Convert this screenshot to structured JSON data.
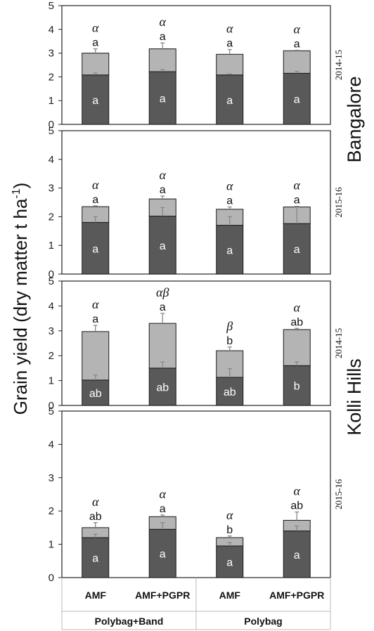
{
  "chart_data": {
    "type": "bar",
    "stacked": true,
    "ylabel_text": "Grain yield (dry matter t ha",
    "ylabel_sup": "-1",
    "ylabel_close": ")",
    "ylim": [
      0,
      5
    ],
    "yticks": [
      "0",
      "1",
      "2",
      "3",
      "4",
      "5"
    ],
    "categories": [
      "AMF",
      "AMF+PGPR",
      "AMF",
      "AMF+PGPR"
    ],
    "groups": [
      "Polybag+Band",
      "Polybag"
    ],
    "colors": {
      "lower": "#595959",
      "upper": "#b4b4b4",
      "edge": "#1a1a1a",
      "error": "#888888"
    },
    "panels": [
      {
        "site": "Bangalore",
        "year": "2014-15",
        "lower": [
          2.08,
          2.22,
          2.08,
          2.15
        ],
        "total": [
          3.0,
          3.18,
          2.95,
          3.1
        ],
        "lower_err": [
          0.08,
          0.08,
          0.04,
          0.08
        ],
        "total_err": [
          0.18,
          0.25,
          0.2,
          0.02
        ],
        "lower_letters": [
          "a",
          "a",
          "a",
          "a"
        ],
        "upper_letters": [
          "a",
          "a",
          "a",
          "a"
        ],
        "greek": [
          "α",
          "α",
          "α",
          "α"
        ]
      },
      {
        "site": "",
        "year": "2015-16",
        "lower": [
          1.8,
          2.02,
          1.7,
          1.76
        ],
        "total": [
          2.35,
          2.62,
          2.26,
          2.34
        ],
        "lower_err": [
          0.2,
          0.3,
          0.3,
          0.6
        ],
        "total_err": [
          0.03,
          0.1,
          0.08,
          0.02
        ],
        "lower_letters": [
          "a",
          "a",
          "a",
          "a"
        ],
        "upper_letters": [
          "a",
          "a",
          "a",
          "a"
        ],
        "greek": [
          "α",
          "α",
          "α",
          "α"
        ]
      },
      {
        "site": "Kolli Hills",
        "year": "2014-15",
        "lower": [
          1.02,
          1.5,
          1.13,
          1.6
        ],
        "total": [
          2.97,
          3.3,
          2.2,
          3.05
        ],
        "lower_err": [
          0.2,
          0.25,
          0.35,
          0.15
        ],
        "total_err": [
          0.25,
          0.4,
          0.15,
          0.05
        ],
        "lower_letters": [
          "ab",
          "ab",
          "ab",
          "b"
        ],
        "upper_letters": [
          "a",
          "a",
          "b",
          "ab"
        ],
        "greek": [
          "α",
          "αβ",
          "β",
          "α"
        ]
      },
      {
        "site": "",
        "year": "2015-16",
        "lower": [
          1.2,
          1.45,
          0.95,
          1.4
        ],
        "total": [
          1.5,
          1.83,
          1.2,
          1.72
        ],
        "lower_err": [
          0.1,
          0.2,
          0.1,
          0.15
        ],
        "total_err": [
          0.15,
          0.05,
          0.05,
          0.25
        ],
        "lower_letters": [
          "a",
          "a",
          "a",
          "a"
        ],
        "upper_letters": [
          "ab",
          "a",
          "b",
          "ab"
        ],
        "greek": [
          "α",
          "α",
          "α",
          "α"
        ]
      }
    ]
  }
}
